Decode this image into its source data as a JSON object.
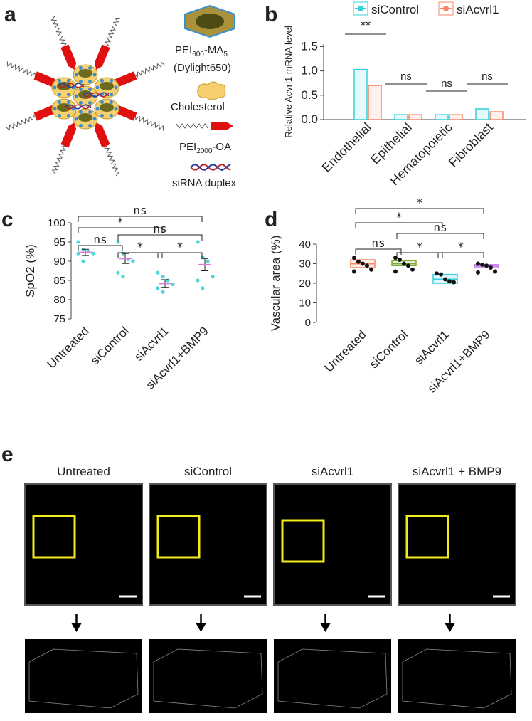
{
  "panels": [
    "a",
    "b",
    "c",
    "d",
    "e"
  ],
  "diagram": {
    "pei600": [
      "PEI",
      "600",
      "-MA",
      "5"
    ],
    "dylight": "(Dylight650)",
    "cholesterol": "Cholesterol",
    "pei2000": [
      "PEI",
      "2000",
      "-OA"
    ],
    "sirna": "siRNA duplex"
  },
  "chart_data": [
    {
      "type": "bar",
      "categories": [
        "Endothelial",
        "Epithelial",
        "Hematopoietic",
        "Fibroblast"
      ],
      "series": [
        {
          "name": "siControl",
          "color": "#33d1dc",
          "values": [
            1.03,
            0.1,
            0.1,
            0.22
          ]
        },
        {
          "name": "siAcvrl1",
          "color": "#f4876a",
          "values": [
            0.7,
            0.1,
            0.1,
            0.16
          ]
        }
      ],
      "ylabel": "Relative Acvrl1 mRNA level",
      "ylim": [
        0,
        1.55
      ],
      "yticks": [
        {
          "value": 0,
          "label": "0.0"
        },
        0.5,
        {
          "value": 1,
          "label": "1.0"
        },
        1.5
      ],
      "annotations": [
        "**",
        "ns",
        "ns",
        "ns"
      ]
    },
    {
      "type": "scatter",
      "categories": [
        "Untreated",
        "siControl",
        "siAcvrl1",
        "siAcvrl1+BMP9"
      ],
      "ylabel": "SpO2 (%)",
      "ylim": [
        75,
        100
      ],
      "yticks": [
        75,
        80,
        85,
        90,
        95,
        100
      ],
      "points": [
        [
          95,
          93,
          92.5,
          92,
          92,
          90
        ],
        [
          95,
          92,
          90.5,
          90,
          87,
          86
        ],
        [
          87,
          86,
          85,
          84,
          83,
          82
        ],
        [
          95,
          91,
          90,
          86,
          85,
          83
        ]
      ],
      "means": [
        92.3,
        90.7,
        84.2,
        89.1
      ],
      "errors": [
        0.8,
        1.3,
        1.0,
        1.6
      ],
      "point_color": "#4fd6d6",
      "mean_color": "#e07ad8",
      "annotations": [
        "ns",
        "*",
        "ns",
        "ns",
        "*",
        "*"
      ]
    },
    {
      "type": "box",
      "categories": [
        "Untreated",
        "siControl",
        "siAcvrl1",
        "siAcvrl1+BMP9"
      ],
      "ylabel": "Vascular area (%)",
      "ylim": [
        0,
        40
      ],
      "yticks": [
        0,
        10,
        20,
        30,
        40
      ],
      "boxes": [
        {
          "q1": 28,
          "median": 30,
          "q3": 32,
          "color": "#f4876a"
        },
        {
          "q1": 29,
          "median": 30,
          "q3": 31.5,
          "color": "#7fae2e"
        },
        {
          "q1": 20,
          "median": 22,
          "q3": 24.5,
          "color": "#33d1dc"
        },
        {
          "q1": 28,
          "median": 28.8,
          "q3": 29.5,
          "color": "#c77cf0"
        }
      ],
      "points": [
        [
          33,
          31,
          30,
          29,
          27,
          26
        ],
        [
          33,
          32,
          30,
          29,
          27,
          26
        ],
        [
          25,
          24.5,
          22,
          21,
          20.5
        ],
        [
          30,
          29.5,
          29,
          28,
          26,
          25.5
        ]
      ],
      "annotations": [
        "*",
        "*",
        "ns",
        "ns",
        "*",
        "*"
      ]
    }
  ],
  "images": {
    "titles": [
      "Untreated",
      "siControl",
      "siAcvrl1",
      "siAcvrl1 + BMP9"
    ]
  }
}
